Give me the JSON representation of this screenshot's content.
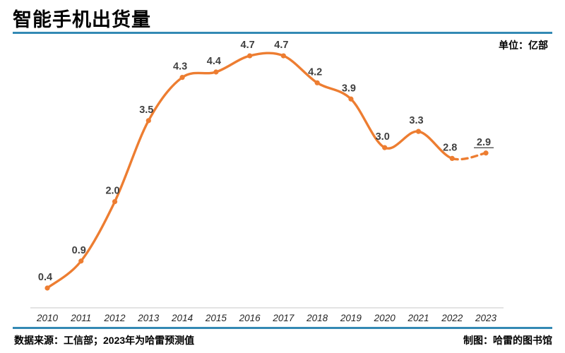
{
  "header": {
    "title": "智能手机出货量",
    "unit_label": "单位：亿部"
  },
  "footer": {
    "source": "数据来源：工信部；2023年为哈雷预测值",
    "credit": "制图：哈雷的图书馆"
  },
  "colors": {
    "accent_blue": "#3389B4",
    "line_orange": "#ED7D31",
    "label_gray": "#3F3F3F",
    "axis_gray": "#DADADA",
    "tick_gray": "#262626"
  },
  "chart_data": {
    "type": "line",
    "title": "智能手机出货量",
    "unit": "亿部",
    "categories": [
      "2010",
      "2011",
      "2012",
      "2013",
      "2014",
      "2015",
      "2016",
      "2017",
      "2018",
      "2019",
      "2020",
      "2021",
      "2022",
      "2023"
    ],
    "values": [
      0.4,
      0.9,
      2.0,
      3.5,
      4.3,
      4.4,
      4.7,
      4.7,
      4.2,
      3.9,
      3.0,
      3.3,
      2.8,
      2.9
    ],
    "value_labels": [
      "0.4",
      "0.9",
      "2.0",
      "3.5",
      "4.3",
      "4.4",
      "4.7",
      "4.7",
      "4.2",
      "3.9",
      "3.0",
      "3.3",
      "2.8",
      "2.9"
    ],
    "forecast_start_index": 12,
    "forecast_label_index": 13,
    "forecast_note": "2023年为哈雷预测值",
    "line_style": "smooth",
    "markers": true,
    "grid": false,
    "legend": "none",
    "ylim": [
      0,
      5
    ],
    "xlabel": "",
    "ylabel": ""
  }
}
